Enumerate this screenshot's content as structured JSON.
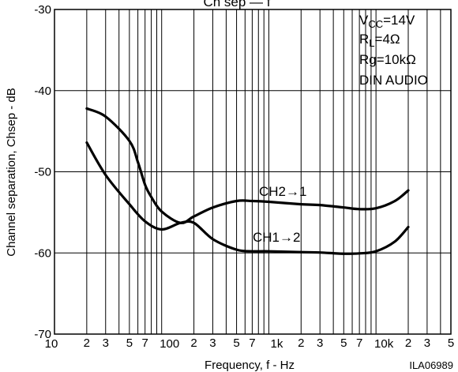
{
  "chart_data": {
    "type": "line",
    "title": "Ch sep — f",
    "xlabel": "Frequency, f - Hz",
    "ylabel": "Channel separation, Chsep - dB",
    "x_scale": "log",
    "xlim": [
      10,
      50000
    ],
    "ylim": [
      -70,
      -30
    ],
    "y_ticks": [
      -30,
      -40,
      -50,
      -60,
      -70
    ],
    "x_major_ticks": [
      {
        "value": 10,
        "label": "10"
      },
      {
        "value": 100,
        "label": "100"
      },
      {
        "value": 1000,
        "label": "1k"
      },
      {
        "value": 10000,
        "label": "10k"
      }
    ],
    "x_minor_labels": [
      "2",
      "3",
      "5",
      "7"
    ],
    "x_end_label": "5",
    "grid": "on",
    "conditions": [
      "VCC=14V",
      "RL=4Ω",
      "Rg=10kΩ",
      "DIN AUDIO"
    ],
    "code": "ILA06989",
    "series": [
      {
        "name": "CH2→1",
        "x": [
          20,
          30,
          50,
          60,
          70,
          80,
          100,
          150,
          200,
          300,
          500,
          700,
          1000,
          2000,
          3000,
          5000,
          7000,
          10000,
          15000,
          20000
        ],
        "y": [
          -42.2,
          -43.2,
          -46.2,
          -48.8,
          -51.6,
          -53.1,
          -54.9,
          -56.3,
          -55.5,
          -54.4,
          -53.6,
          -53.6,
          -53.7,
          -54,
          -54.1,
          -54.4,
          -54.6,
          -54.5,
          -53.6,
          -52.3
        ]
      },
      {
        "name": "CH1→2",
        "x": [
          20,
          30,
          50,
          70,
          100,
          150,
          200,
          300,
          500,
          700,
          1000,
          2000,
          3000,
          5000,
          7000,
          10000,
          15000,
          20000
        ],
        "y": [
          -46.4,
          -50.4,
          -54,
          -56.1,
          -57.1,
          -56.3,
          -56.3,
          -58.3,
          -59.6,
          -59.8,
          -59.8,
          -59.9,
          -59.95,
          -60.1,
          -60.05,
          -59.8,
          -58.6,
          -56.8
        ]
      }
    ]
  }
}
